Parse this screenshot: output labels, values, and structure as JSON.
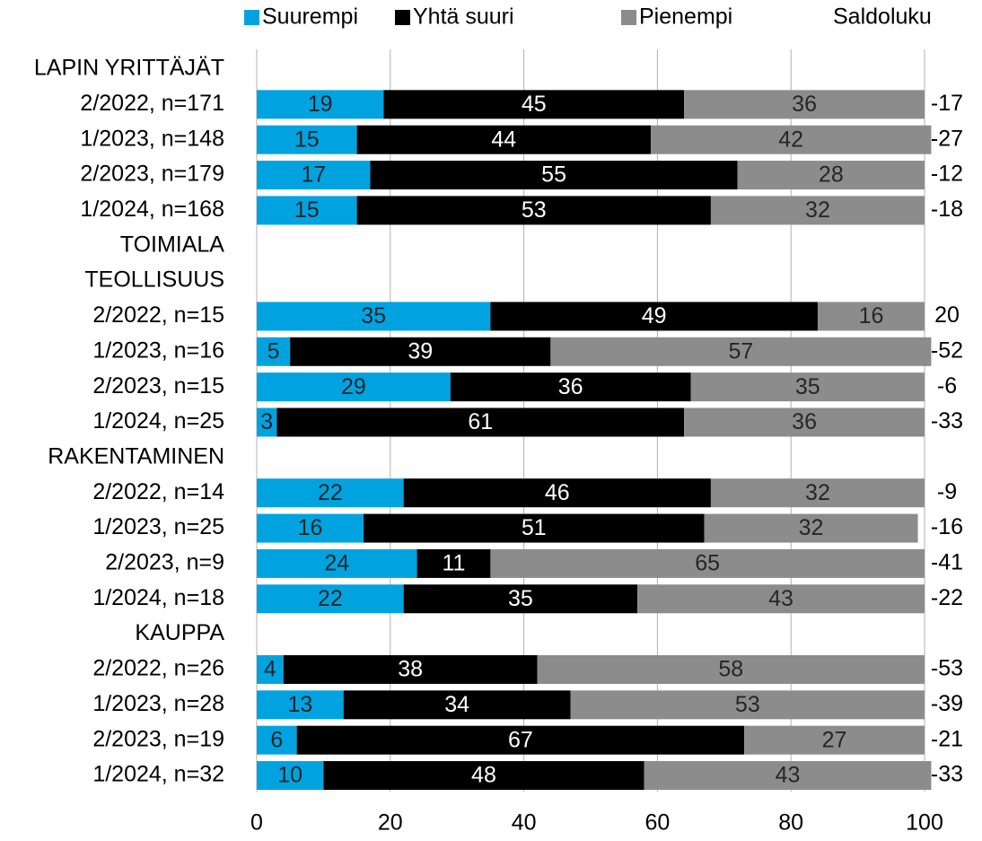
{
  "chart_data": {
    "type": "stacked-bar-horizontal",
    "categories": [
      "LAPIN YRITTÄJÄT",
      "2/2022, n=171",
      "1/2023, n=148",
      "2/2023, n=179",
      "1/2024, n=168",
      "TOIMIALA",
      "TEOLLISUUS",
      "2/2022, n=15",
      "1/2023, n=16",
      "2/2023, n=15",
      "1/2024, n=25",
      "RAKENTAMINEN",
      "2/2022, n=14",
      "1/2023, n=25",
      "2/2023, n=9",
      "1/2024, n=18",
      "KAUPPA",
      "2/2022, n=26",
      "1/2023, n=28",
      "2/2023, n=19",
      "1/2024, n=32"
    ],
    "series": [
      {
        "name": "Suurempi",
        "color": "#00a3e0",
        "label_color": "#262626",
        "values": [
          null,
          19,
          15,
          17,
          15,
          null,
          null,
          35,
          5,
          29,
          3,
          null,
          22,
          16,
          24,
          22,
          null,
          4,
          13,
          6,
          10
        ]
      },
      {
        "name": "Yhtä suuri",
        "color": "#000000",
        "label_color": "#ffffff",
        "values": [
          null,
          45,
          44,
          55,
          53,
          null,
          null,
          49,
          39,
          36,
          61,
          null,
          46,
          51,
          11,
          35,
          null,
          38,
          34,
          67,
          48
        ]
      },
      {
        "name": "Pienempi",
        "color": "#8c8c8c",
        "label_color": "#262626",
        "values": [
          null,
          36,
          42,
          28,
          32,
          null,
          null,
          16,
          57,
          35,
          36,
          null,
          32,
          32,
          65,
          43,
          null,
          58,
          53,
          27,
          43
        ]
      }
    ],
    "saldo": {
      "name": "Saldoluku",
      "values": [
        null,
        -17,
        -27,
        -12,
        -18,
        null,
        null,
        20,
        -52,
        -6,
        -33,
        null,
        -9,
        -16,
        -41,
        -22,
        null,
        -53,
        -39,
        -21,
        -33
      ]
    },
    "xlim": [
      0,
      100
    ],
    "xticks": [
      0,
      20,
      40,
      60,
      80,
      100
    ],
    "grid": true,
    "legend": "top"
  }
}
